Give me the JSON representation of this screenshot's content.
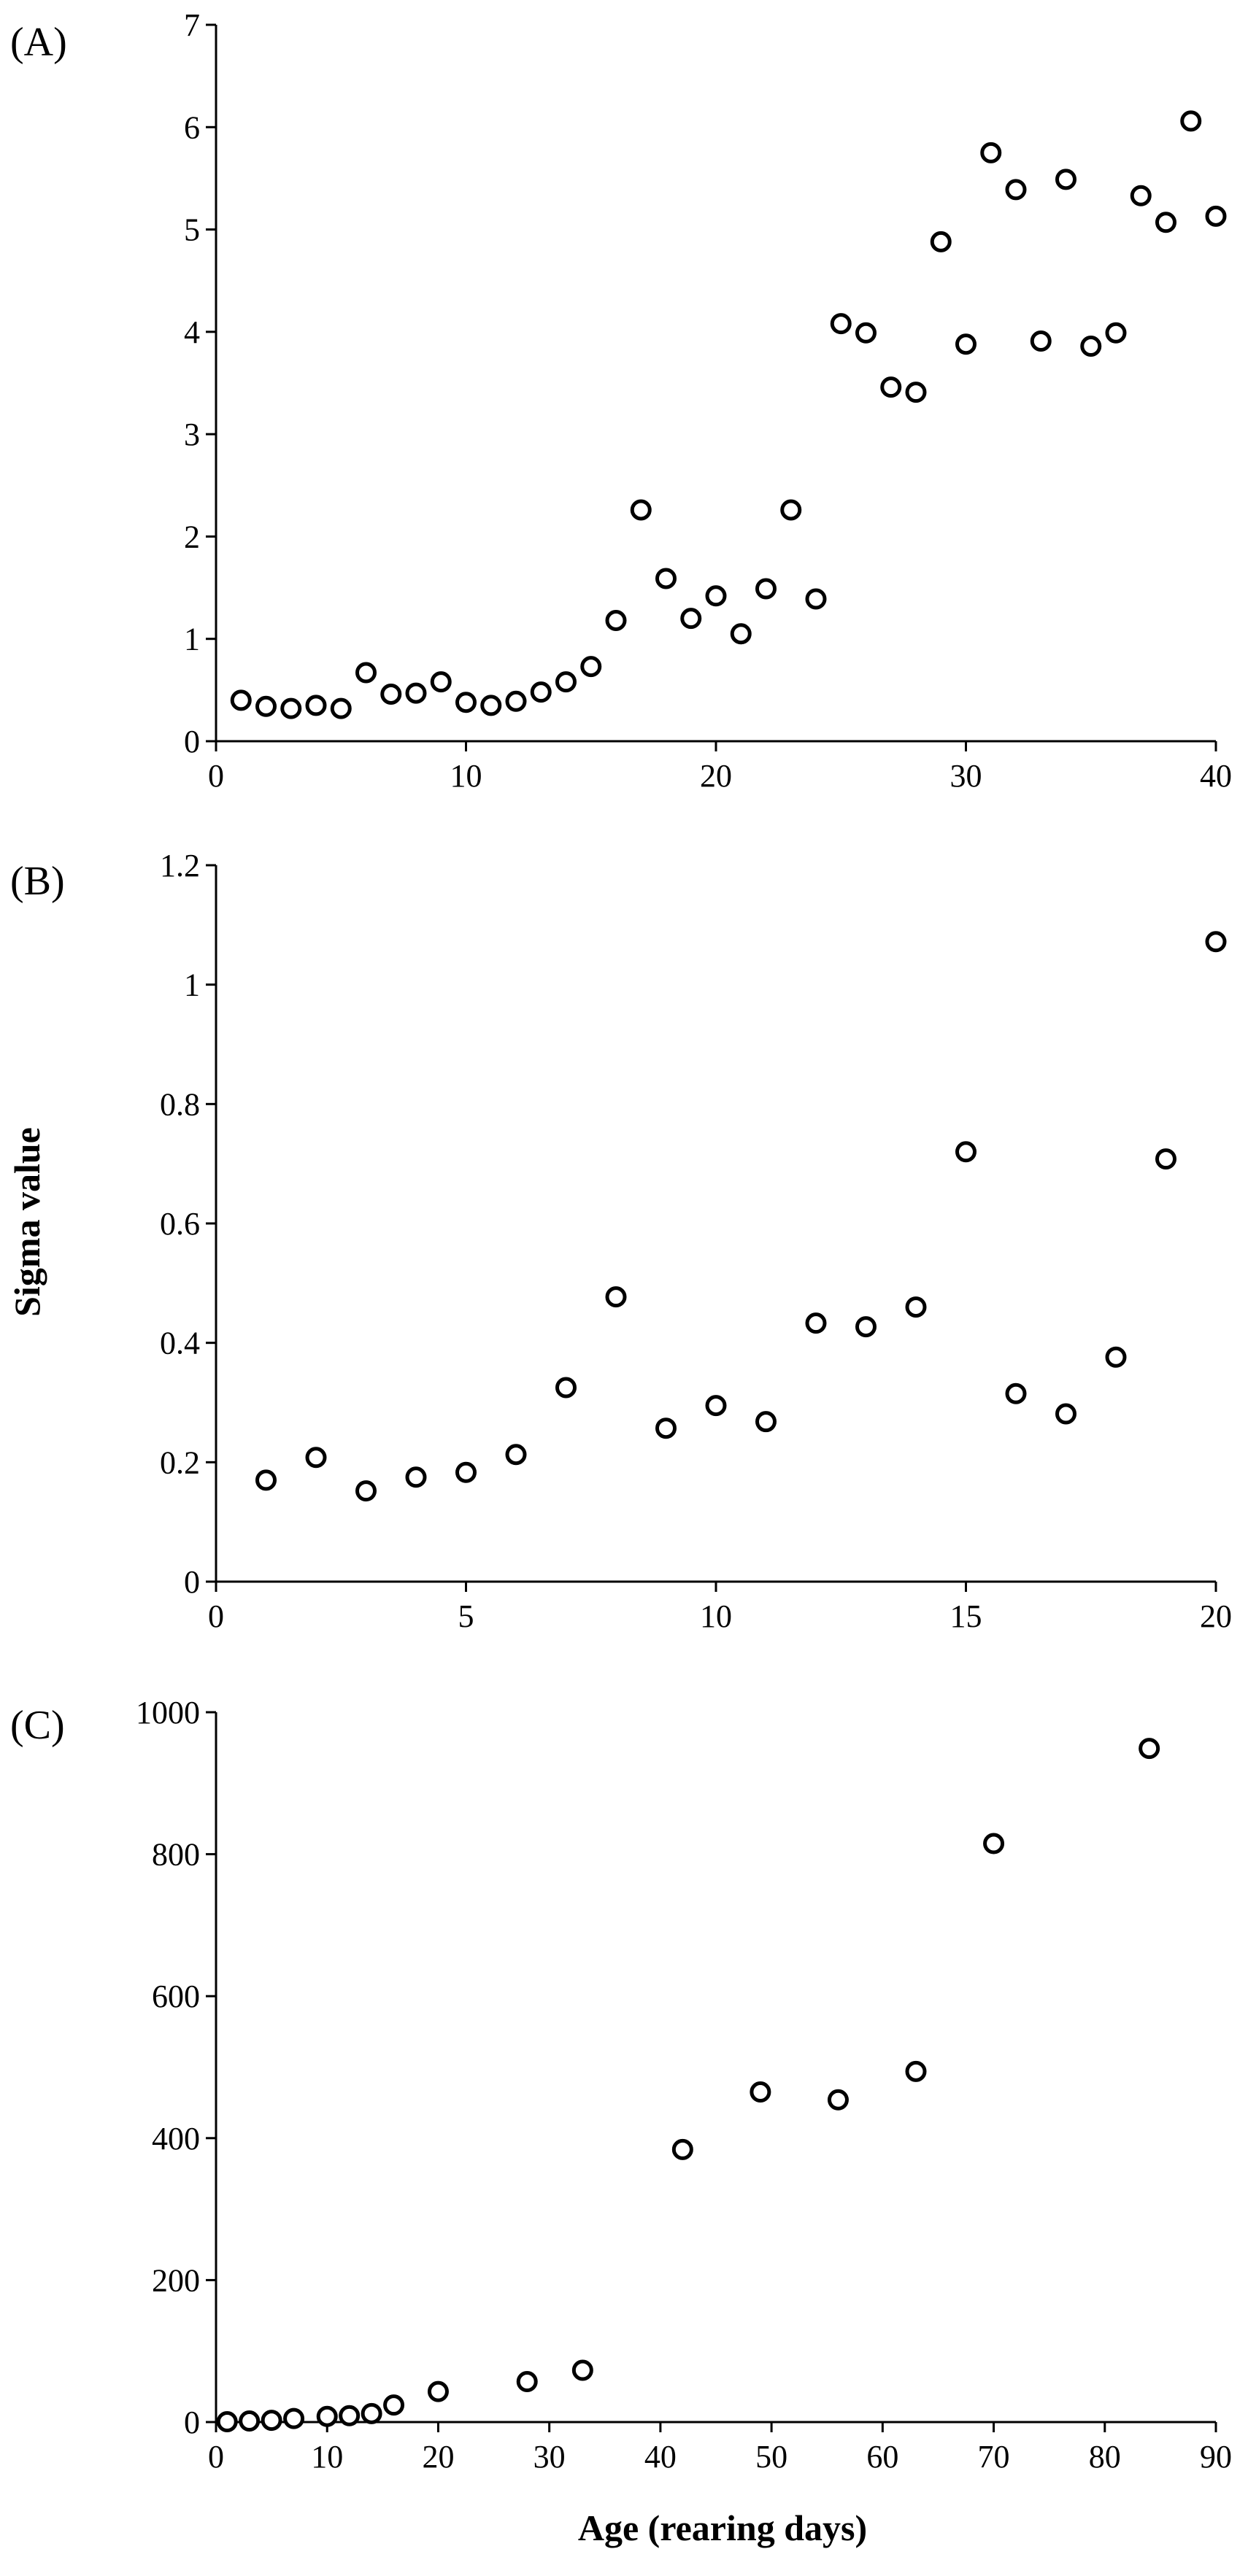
{
  "figure": {
    "ylabel": "Sigma value",
    "xlabel": "Age (rearing days)"
  },
  "chart_data": [
    {
      "type": "scatter",
      "panel": "(A)",
      "xlim": [
        0,
        40
      ],
      "ylim": [
        0,
        7
      ],
      "xticks": [
        0,
        10,
        20,
        30,
        40
      ],
      "yticks": [
        0,
        1,
        2,
        3,
        4,
        5,
        6,
        7
      ],
      "points": [
        [
          1,
          0.4
        ],
        [
          2,
          0.34
        ],
        [
          3,
          0.32
        ],
        [
          4,
          0.35
        ],
        [
          5,
          0.32
        ],
        [
          6,
          0.67
        ],
        [
          7,
          0.46
        ],
        [
          8,
          0.47
        ],
        [
          9,
          0.58
        ],
        [
          10,
          0.38
        ],
        [
          11,
          0.35
        ],
        [
          12,
          0.39
        ],
        [
          13,
          0.48
        ],
        [
          14,
          0.58
        ],
        [
          15,
          0.73
        ],
        [
          16,
          1.18
        ],
        [
          17,
          2.26
        ],
        [
          18,
          1.59
        ],
        [
          19,
          1.2
        ],
        [
          20,
          1.42
        ],
        [
          21,
          1.05
        ],
        [
          22,
          1.49
        ],
        [
          23,
          2.26
        ],
        [
          24,
          1.39
        ],
        [
          25,
          4.08
        ],
        [
          26,
          3.99
        ],
        [
          27,
          3.46
        ],
        [
          28,
          3.41
        ],
        [
          29,
          4.88
        ],
        [
          30,
          3.88
        ],
        [
          31,
          5.75
        ],
        [
          32,
          5.39
        ],
        [
          33,
          3.91
        ],
        [
          34,
          5.49
        ],
        [
          35,
          3.86
        ],
        [
          36,
          3.99
        ],
        [
          37,
          5.33
        ],
        [
          38,
          5.07
        ],
        [
          39,
          6.06
        ],
        [
          40,
          5.13
        ]
      ]
    },
    {
      "type": "scatter",
      "panel": "(B)",
      "xlim": [
        0,
        20
      ],
      "ylim": [
        0,
        1.2
      ],
      "xticks": [
        0,
        5,
        10,
        15,
        20
      ],
      "yticks": [
        0,
        0.2,
        0.4,
        0.6,
        0.8,
        1,
        1.2
      ],
      "points": [
        [
          1,
          0.17
        ],
        [
          2,
          0.208
        ],
        [
          3,
          0.152
        ],
        [
          4,
          0.175
        ],
        [
          5,
          0.183
        ],
        [
          6,
          0.213
        ],
        [
          7,
          0.325
        ],
        [
          8,
          0.477
        ],
        [
          9,
          0.257
        ],
        [
          10,
          0.295
        ],
        [
          11,
          0.268
        ],
        [
          12,
          0.433
        ],
        [
          13,
          0.427
        ],
        [
          14,
          0.46
        ],
        [
          15,
          0.72
        ],
        [
          16,
          0.315
        ],
        [
          17,
          0.281
        ],
        [
          18,
          0.376
        ],
        [
          19,
          0.708
        ],
        [
          20,
          1.072
        ]
      ]
    },
    {
      "type": "scatter",
      "panel": "(C)",
      "xlim": [
        0,
        90
      ],
      "ylim": [
        0,
        1000
      ],
      "xticks": [
        0,
        10,
        20,
        30,
        40,
        50,
        60,
        70,
        80,
        90
      ],
      "yticks": [
        0,
        200,
        400,
        600,
        800,
        1000
      ],
      "points": [
        [
          1,
          0.5
        ],
        [
          3,
          1.5
        ],
        [
          5,
          2.5
        ],
        [
          7,
          5
        ],
        [
          10,
          8
        ],
        [
          12,
          9
        ],
        [
          14,
          12
        ],
        [
          16,
          24
        ],
        [
          20,
          43
        ],
        [
          28,
          57
        ],
        [
          33,
          73
        ],
        [
          42,
          384
        ],
        [
          49,
          465
        ],
        [
          56,
          454
        ],
        [
          63,
          494
        ],
        [
          70,
          815
        ],
        [
          84,
          949
        ]
      ]
    }
  ]
}
